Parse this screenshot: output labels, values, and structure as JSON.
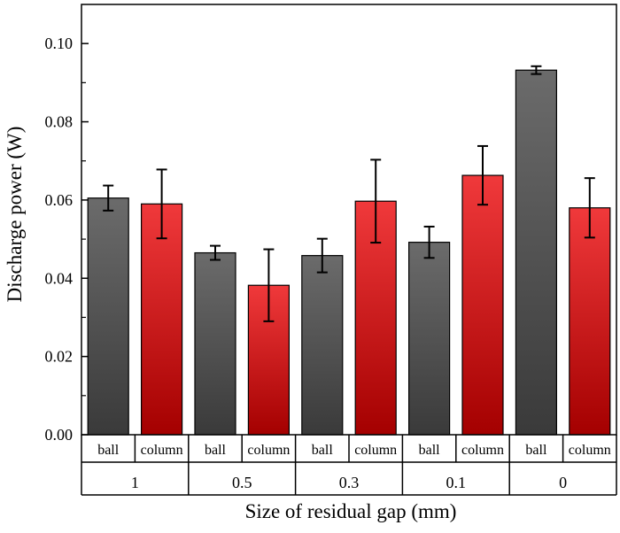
{
  "chart_data": {
    "type": "bar",
    "title": "",
    "xlabel": "Size of residual gap (mm)",
    "ylabel": "Discharge power (W)",
    "ylim": [
      0,
      0.11
    ],
    "yticks": [
      "0.00",
      "0.02",
      "0.04",
      "0.06",
      "0.08",
      "0.10"
    ],
    "grid": false,
    "groups": [
      "1",
      "0.5",
      "0.3",
      "0.1",
      "0"
    ],
    "series": [
      {
        "name": "ball",
        "color": "#6b6b6b",
        "color_dark": "#3a3a3a",
        "values": [
          0.0605,
          0.0465,
          0.0458,
          0.0492,
          0.0932
        ],
        "errors": [
          0.0032,
          0.0018,
          0.0043,
          0.004,
          0.001
        ]
      },
      {
        "name": "column",
        "color": "#f0393b",
        "color_dark": "#a40000",
        "values": [
          0.059,
          0.0382,
          0.0597,
          0.0663,
          0.058
        ],
        "errors": [
          0.0088,
          0.0092,
          0.0106,
          0.0075,
          0.0076
        ]
      }
    ]
  }
}
